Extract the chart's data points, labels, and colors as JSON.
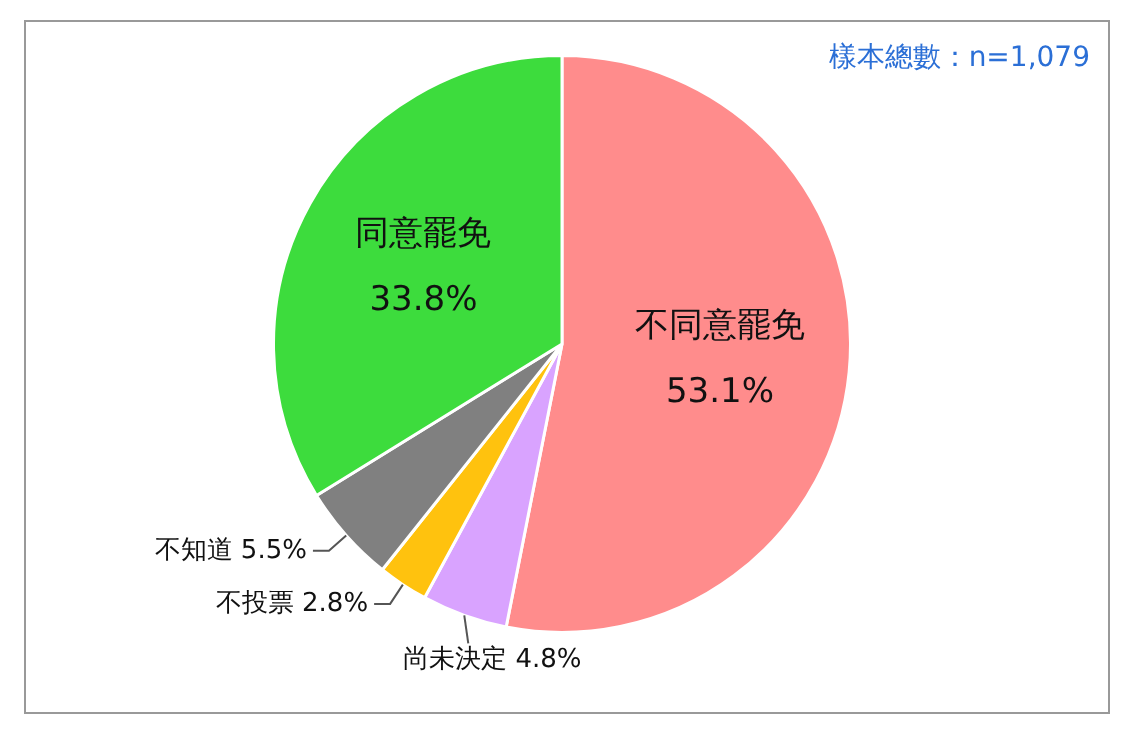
{
  "chart_data": {
    "type": "pie",
    "categories": [
      "不同意罷免",
      "尚未決定",
      "不投票",
      "不知道",
      "同意罷免"
    ],
    "values": [
      53.1,
      4.8,
      2.8,
      5.5,
      33.8
    ],
    "value_labels": [
      "53.1%",
      "4.8%",
      "2.8%",
      "5.5%",
      "33.8%"
    ],
    "colors": [
      "#ff8c8c",
      "#d9a3ff",
      "#ffc20e",
      "#808080",
      "#3ddc3d"
    ],
    "annotations": [
      "樣本總數：n=1,079"
    ],
    "legend": false
  }
}
